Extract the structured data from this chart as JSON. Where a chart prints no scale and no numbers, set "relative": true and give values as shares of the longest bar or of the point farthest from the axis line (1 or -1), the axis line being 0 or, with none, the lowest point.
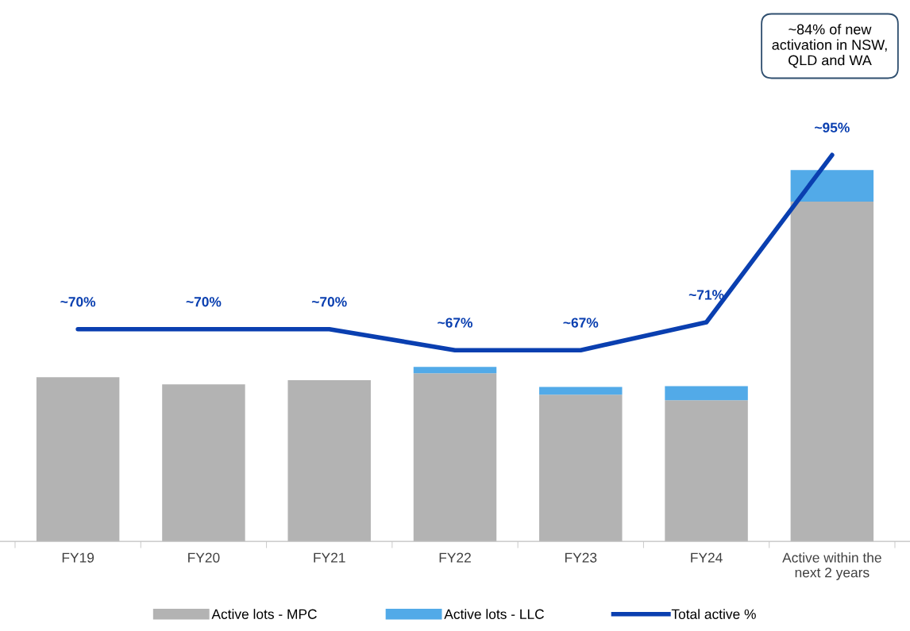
{
  "chart_data": [
    {
      "type": "bar",
      "stacked": true,
      "relative": true,
      "categories": [
        "FY19",
        "FY20",
        "FY21",
        "FY22",
        "FY23",
        "FY24",
        "Active within the\nnext 2 years"
      ],
      "series": [
        {
          "name": "Active lots - MPC",
          "color": "#b3b3b3",
          "values": [
            0.442,
            0.423,
            0.434,
            0.453,
            0.395,
            0.38,
            0.915
          ]
        },
        {
          "name": "Active lots - LLC",
          "color": "#52aae8",
          "values": [
            0,
            0,
            0,
            0.017,
            0.021,
            0.038,
            0.085
          ]
        }
      ],
      "legend": "bottom",
      "grid": false
    },
    {
      "type": "line",
      "categories": [
        null,
        null,
        null,
        null,
        null,
        null,
        null
      ],
      "series": [
        {
          "name": "Total active %",
          "color": "#0a3fb0",
          "values": [
            70,
            70,
            70,
            67,
            67,
            71,
            95
          ],
          "value_labels": [
            "~70%",
            "~70%",
            "~70%",
            "~67%",
            "~67%",
            "~71%",
            "~95%"
          ]
        }
      ],
      "annotations": [
        "~84% of new\nactivation in NSW,\nQLD and WA"
      ],
      "legend": "bottom",
      "grid": false
    }
  ]
}
